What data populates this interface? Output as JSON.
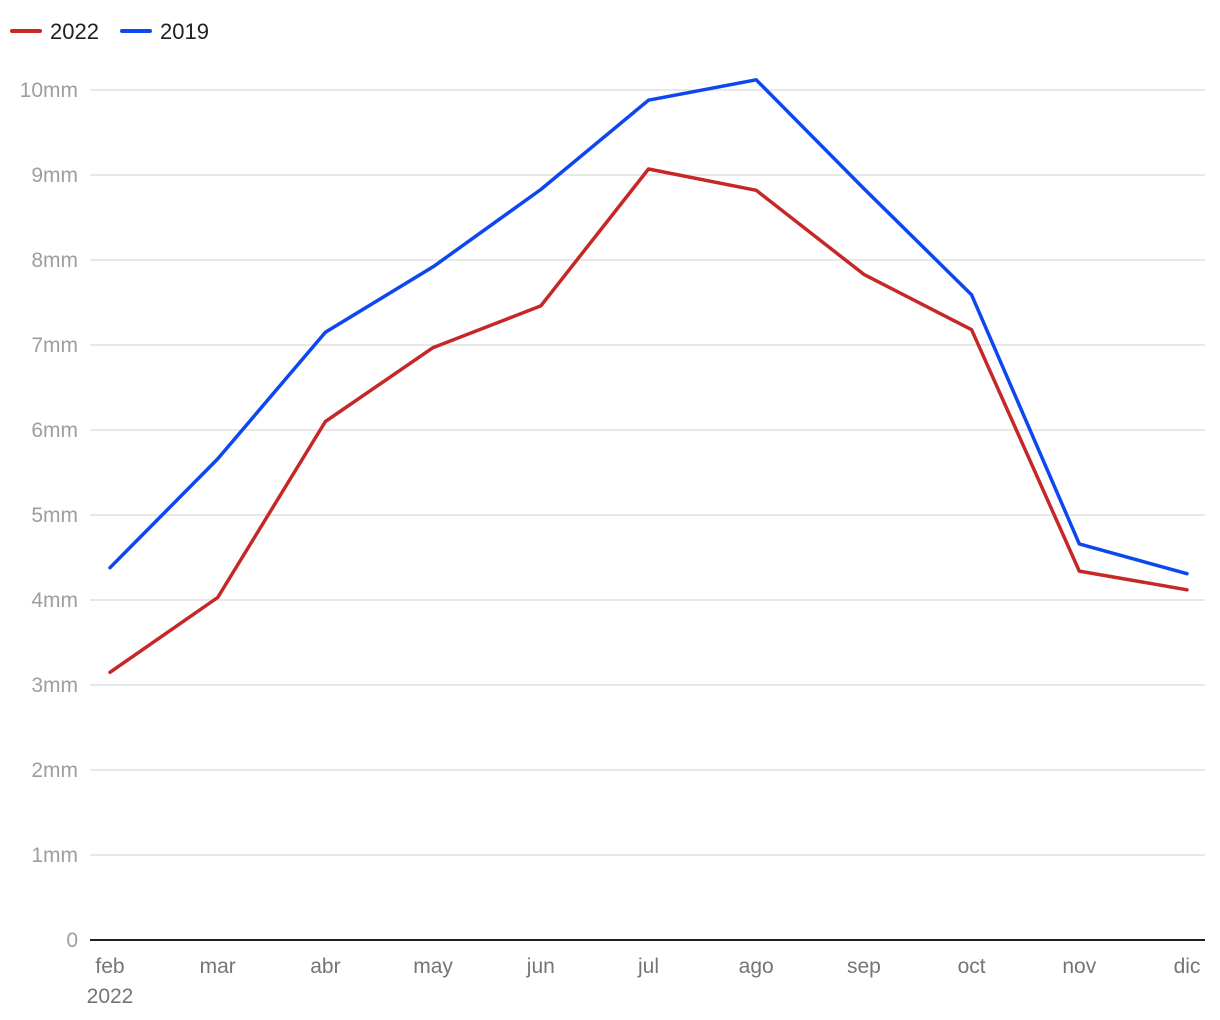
{
  "chart_data": {
    "type": "line",
    "title": "",
    "xlabel": "",
    "ylabel": "",
    "categories": [
      "feb",
      "mar",
      "abr",
      "may",
      "jun",
      "jul",
      "ago",
      "sep",
      "oct",
      "nov",
      "dic"
    ],
    "year_label": "2022",
    "y_ticks": [
      "0",
      "1mm",
      "2mm",
      "3mm",
      "4mm",
      "5mm",
      "6mm",
      "7mm",
      "8mm",
      "9mm",
      "10mm"
    ],
    "ylim": [
      0,
      10
    ],
    "grid": true,
    "legend_position": "top-left",
    "series": [
      {
        "name": "2022",
        "color": "#c62828",
        "values": [
          3.15,
          4.03,
          6.1,
          6.97,
          7.46,
          9.07,
          8.82,
          7.83,
          7.18,
          4.34,
          4.12
        ]
      },
      {
        "name": "2019",
        "color": "#0d47f0",
        "values": [
          4.38,
          5.66,
          7.15,
          7.92,
          8.83,
          9.88,
          10.12,
          8.84,
          7.59,
          4.66,
          4.31
        ]
      }
    ]
  }
}
